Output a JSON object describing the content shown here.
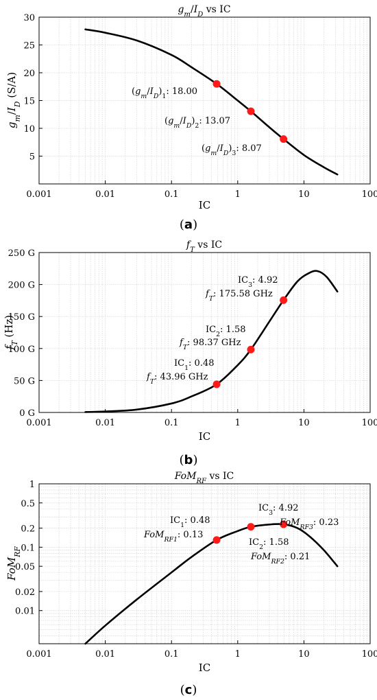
{
  "chart_data": [
    {
      "type": "line",
      "subfigure": "(a)",
      "title": "g_m/I_D vs IC",
      "xlabel": "IC",
      "ylabel": "g_m/I_D (S/A)",
      "xscale": "log",
      "xlim": [
        0.001,
        100
      ],
      "ylim": [
        0,
        30
      ],
      "xticks": [
        "0.001",
        "0.01",
        "0.1",
        "1",
        "10",
        "100"
      ],
      "yticks": [
        "5",
        "10",
        "15",
        "20",
        "25",
        "30"
      ],
      "ytick_values": [
        5,
        10,
        15,
        20,
        25,
        30
      ],
      "grid": true,
      "curve": {
        "x": [
          0.005,
          0.01,
          0.03,
          0.1,
          0.2,
          0.48,
          1.0,
          1.58,
          3.0,
          4.92,
          10,
          20,
          32
        ],
        "y": [
          27.8,
          27.2,
          25.8,
          23.2,
          21.0,
          18.0,
          15.0,
          13.07,
          10.2,
          8.07,
          5.2,
          3.0,
          1.7
        ]
      },
      "markers": [
        {
          "x": 0.48,
          "y": 18.0,
          "label": "(g_m/I_D)_1: 18.00"
        },
        {
          "x": 1.58,
          "y": 13.07,
          "label": "(g_m/I_D)_2: 13.07"
        },
        {
          "x": 4.92,
          "y": 8.07,
          "label": "(g_m/I_D)_3: 8.07"
        }
      ]
    },
    {
      "type": "line",
      "subfigure": "(b)",
      "title": "f_T vs IC",
      "xlabel": "IC",
      "ylabel": "f_T (Hz)",
      "xscale": "log",
      "xlim": [
        0.001,
        100
      ],
      "ylim": [
        0,
        250
      ],
      "xticks": [
        "0.001",
        "0.01",
        "0.1",
        "1",
        "10",
        "100"
      ],
      "yticks": [
        "0 G",
        "50 G",
        "100 G",
        "150 G",
        "200 G",
        "250 G"
      ],
      "ytick_values": [
        0,
        50,
        100,
        150,
        200,
        250
      ],
      "grid": true,
      "curve": {
        "x": [
          0.005,
          0.01,
          0.03,
          0.1,
          0.2,
          0.48,
          1.0,
          1.58,
          3.0,
          4.92,
          8,
          12,
          16,
          22,
          32
        ],
        "y": [
          0.6,
          1.5,
          4.5,
          14,
          25,
          43.96,
          74,
          98.37,
          142,
          175.58,
          205,
          218,
          221,
          212,
          189
        ]
      },
      "markers": [
        {
          "x": 0.48,
          "y": 43.96,
          "label_ic": "IC_1: 0.48",
          "label_v": "f_T: 43.96 GHz"
        },
        {
          "x": 1.58,
          "y": 98.37,
          "label_ic": "IC_2: 1.58",
          "label_v": "f_T: 98.37 GHz"
        },
        {
          "x": 4.92,
          "y": 175.58,
          "label_ic": "IC_3: 4.92",
          "label_v": "f_T: 175.58 GHz"
        }
      ]
    },
    {
      "type": "line",
      "subfigure": "(c)",
      "title": "FoM_RF vs IC",
      "xlabel": "IC",
      "ylabel": "FoM_RF",
      "xscale": "log",
      "yscale": "log",
      "xlim": [
        0.001,
        100
      ],
      "ylim": [
        0.003,
        1
      ],
      "xticks": [
        "0.001",
        "0.01",
        "0.1",
        "1",
        "10",
        "100"
      ],
      "yticks": [
        "0.01",
        "0.02",
        "0.05",
        "0.1",
        "0.2",
        "0.5",
        "1"
      ],
      "ytick_values": [
        0.01,
        0.02,
        0.05,
        0.1,
        0.2,
        0.5,
        1
      ],
      "grid": true,
      "curve": {
        "x": [
          0.005,
          0.01,
          0.03,
          0.1,
          0.2,
          0.48,
          1.0,
          1.58,
          3.0,
          4.92,
          8,
          12,
          20,
          32
        ],
        "y": [
          0.003,
          0.0058,
          0.015,
          0.04,
          0.07,
          0.13,
          0.18,
          0.21,
          0.228,
          0.23,
          0.2,
          0.15,
          0.09,
          0.05
        ]
      },
      "markers": [
        {
          "x": 0.48,
          "y": 0.13,
          "label_ic": "IC_1: 0.48",
          "label_v": "FoM_RF1: 0.13"
        },
        {
          "x": 1.58,
          "y": 0.21,
          "label_ic": "IC_2: 1.58",
          "label_v": "FoM_RF2: 0.21"
        },
        {
          "x": 4.92,
          "y": 0.23,
          "label_ic": "IC_3: 4.92",
          "label_v": "FoM_RF3: 0.23"
        }
      ]
    }
  ],
  "colors": {
    "curve": "#000000",
    "marker": "#ff1a1a",
    "grid": "#d9d9d9",
    "axis": "#000000"
  }
}
